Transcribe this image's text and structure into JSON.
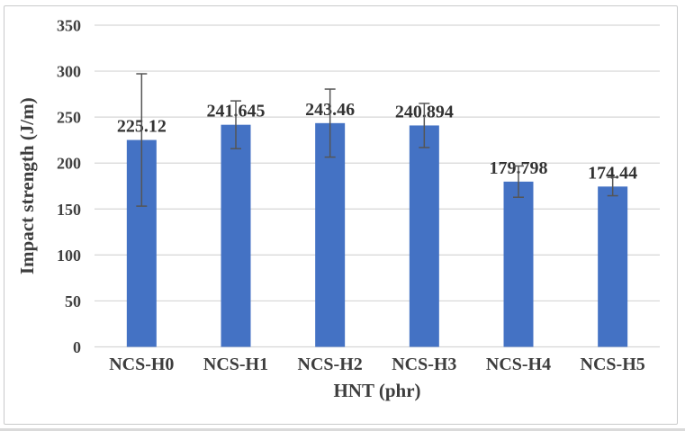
{
  "page": {
    "background_color": "#ffffff",
    "chart_frame_border_color": "#c9cacb",
    "bottom_rule_color": "#dadada"
  },
  "chart_data": {
    "type": "bar",
    "title": "",
    "xlabel": "HNT (phr)",
    "ylabel": "Impact strength (J/m)",
    "categories": [
      "NCS-H0",
      "NCS-H1",
      "NCS-H2",
      "NCS-H3",
      "NCS-H4",
      "NCS-H5"
    ],
    "series": [
      {
        "name": "Impact strength",
        "values": [
          225.12,
          241.645,
          243.46,
          240.894,
          179.798,
          174.44
        ],
        "data_labels": [
          "225.12",
          "241.645",
          "243.46",
          "240.894",
          "179.798",
          "174.44"
        ],
        "error_plus": [
          72,
          26,
          37,
          24,
          17,
          10
        ],
        "error_minus": [
          72,
          26,
          37,
          24,
          17,
          10
        ]
      }
    ],
    "ylim": [
      0,
      350
    ],
    "ytick_step": 50,
    "ytick_labels": [
      "0",
      "50",
      "100",
      "150",
      "200",
      "250",
      "300",
      "350"
    ],
    "grid": true,
    "legend_position": "none",
    "bar_color": "#4472c4",
    "error_bar_color": "#555555",
    "gridline_color": "#d6d6d6",
    "axis_text_color": "#404040"
  }
}
